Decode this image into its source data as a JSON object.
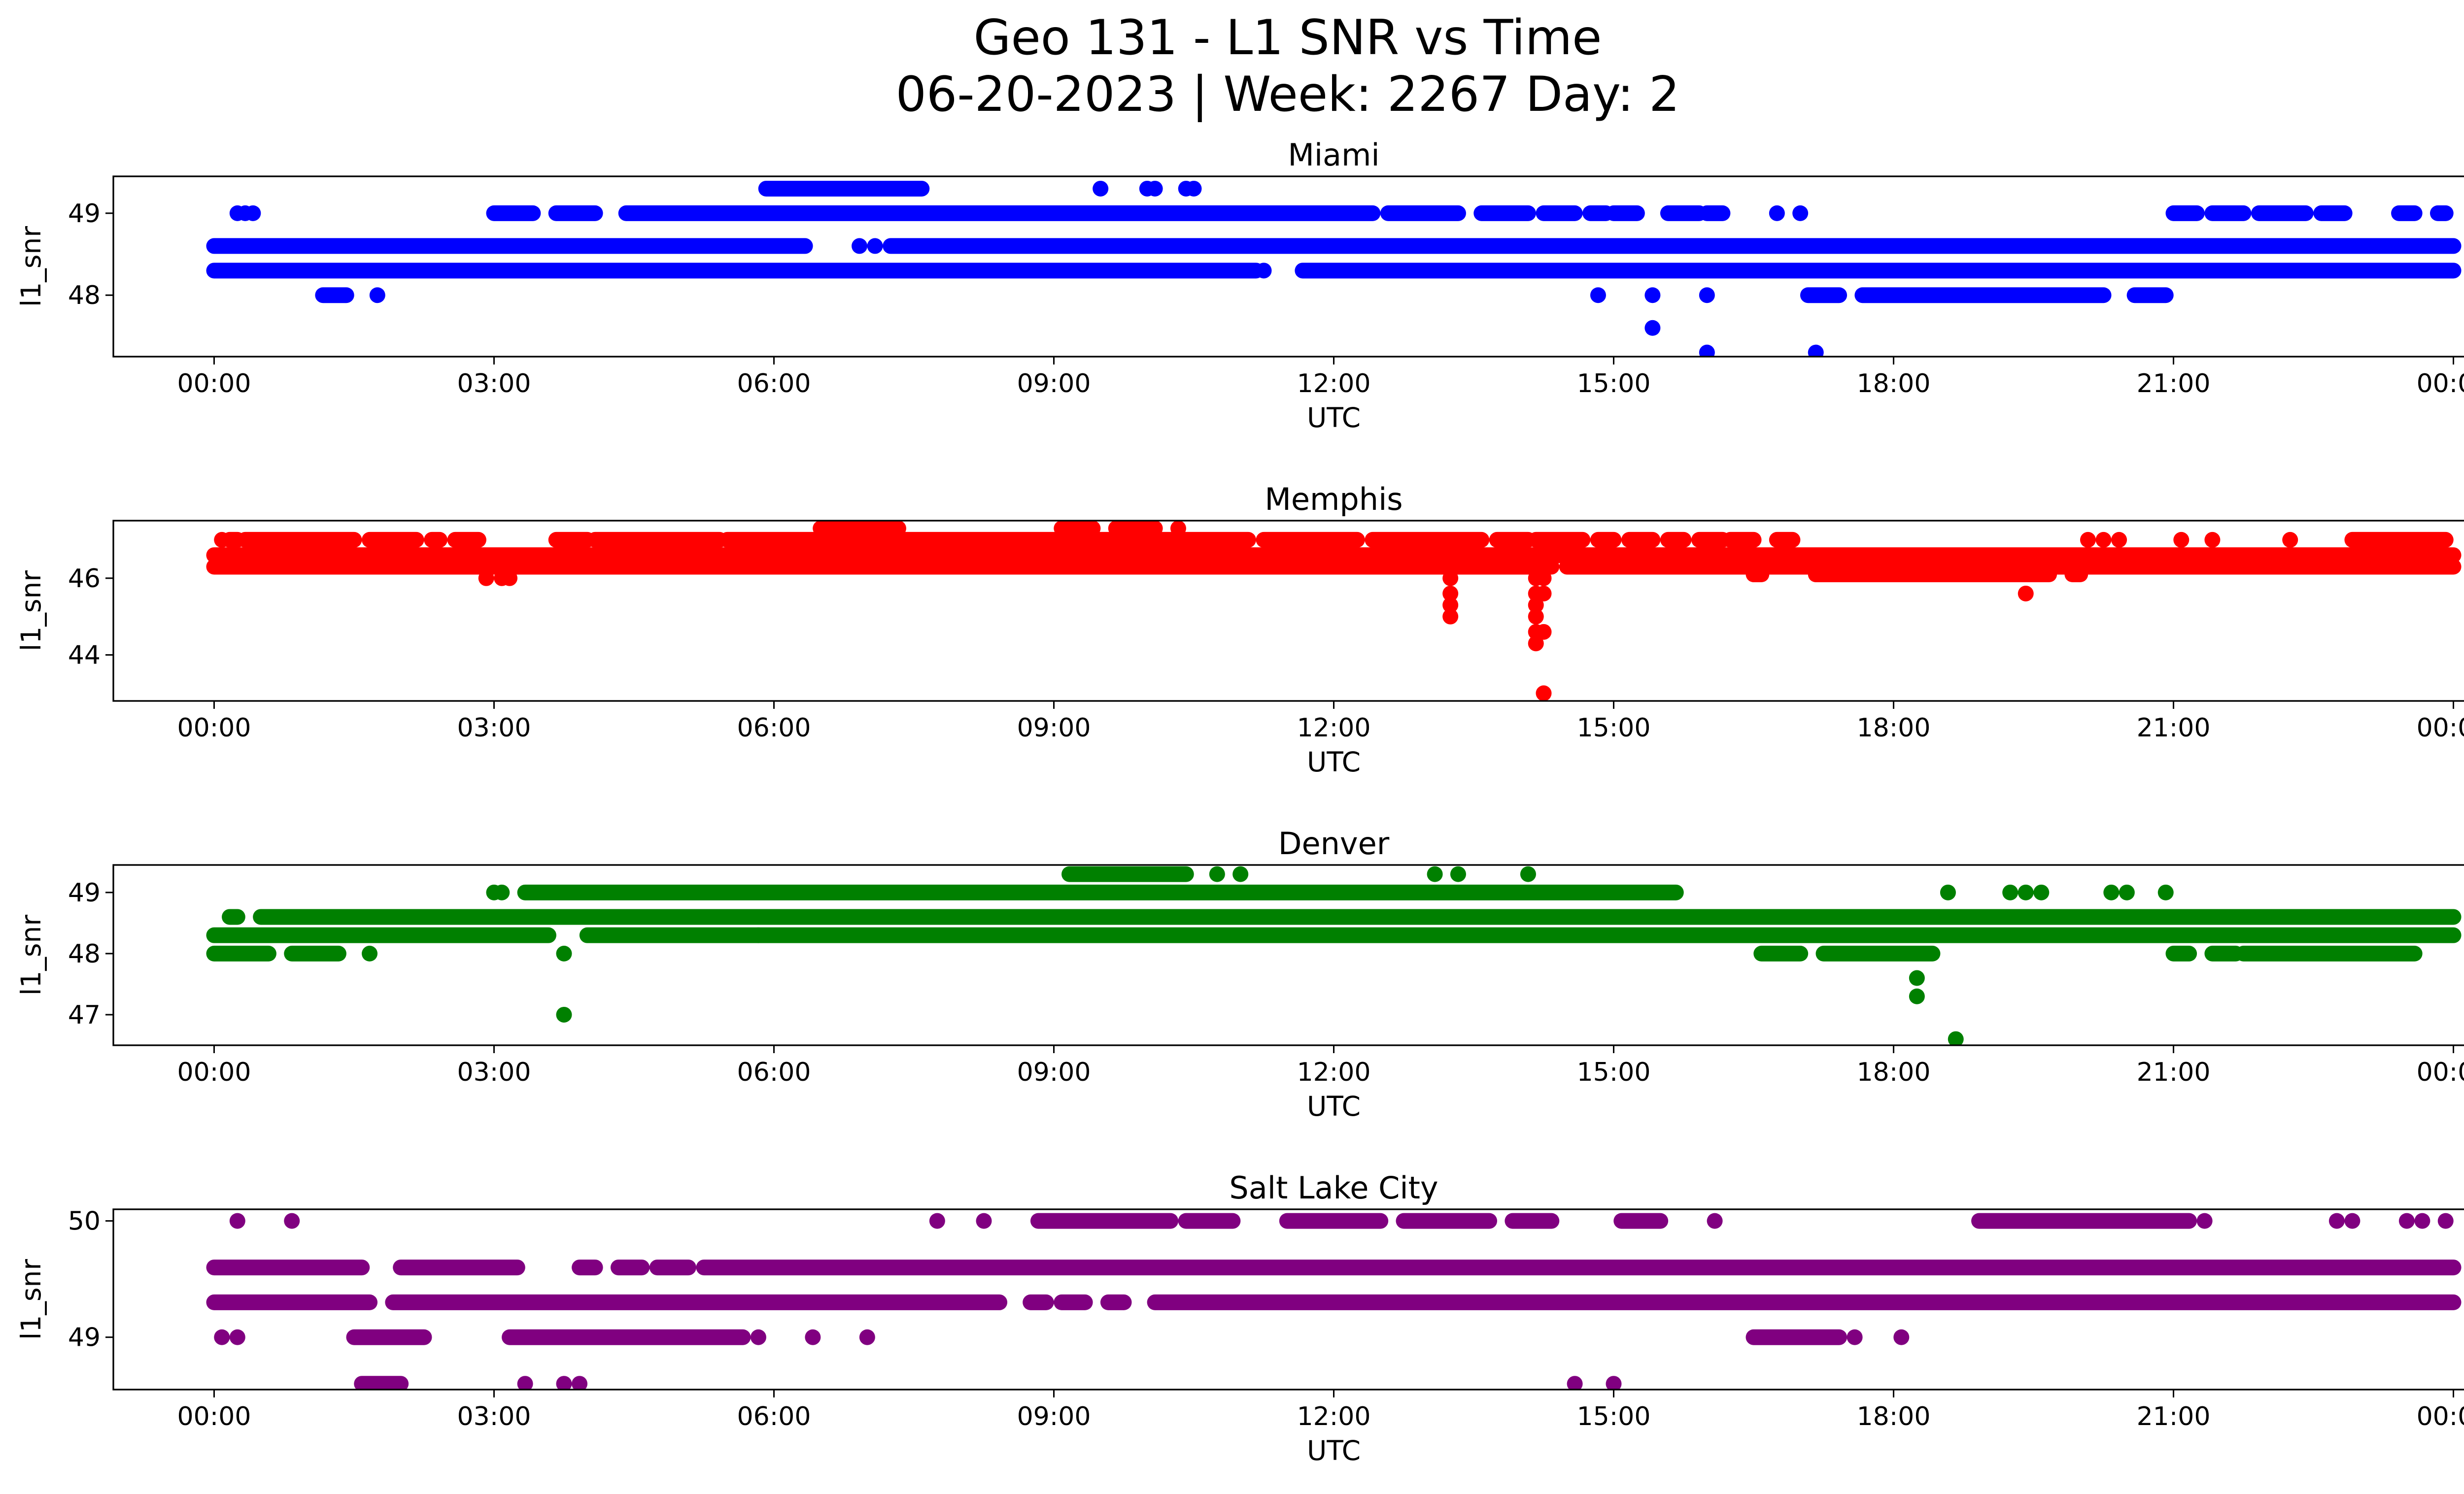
{
  "figure": {
    "title_line1": "Geo 131 - L1 SNR vs Time",
    "title_line2": "06-20-2023 | Week: 2267 Day: 2"
  },
  "chart_data": [
    {
      "type": "scatter",
      "title": "Miami",
      "xlabel": "UTC",
      "ylabel": "l1_snr",
      "color": "#0000ff",
      "xlim": [
        "2023-06-20T00:00",
        "2023-06-21T00:00"
      ],
      "ylim": [
        47.25,
        49.45
      ],
      "yticks": [
        48,
        49
      ],
      "x_tick_labels": [
        "00:00",
        "03:00",
        "06:00",
        "09:00",
        "12:00",
        "15:00",
        "18:00",
        "21:00",
        "00:00"
      ],
      "bands": [
        {
          "y": 48.3,
          "segments": [
            [
              "00:00",
              "11:10"
            ],
            [
              "11:40",
              "24:00"
            ]
          ]
        },
        {
          "y": 48.6,
          "segments": [
            [
              "00:00",
              "06:20"
            ],
            [
              "07:15",
              "24:00"
            ]
          ]
        },
        {
          "y": 49.0,
          "segments": [
            [
              "03:00",
              "03:25"
            ],
            [
              "03:40",
              "04:05"
            ],
            [
              "04:25",
              "12:25"
            ],
            [
              "12:35",
              "13:20"
            ],
            [
              "13:35",
              "14:05"
            ],
            [
              "14:15",
              "14:35"
            ],
            [
              "14:45",
              "14:55"
            ],
            [
              "15:00",
              "15:15"
            ],
            [
              "15:35",
              "15:55"
            ],
            [
              "16:00",
              "16:10"
            ],
            [
              "21:00",
              "21:15"
            ],
            [
              "21:25",
              "21:45"
            ],
            [
              "21:55",
              "22:25"
            ],
            [
              "22:35",
              "22:50"
            ],
            [
              "23:25",
              "23:35"
            ],
            [
              "23:50",
              "23:55"
            ]
          ]
        },
        {
          "y": 48.0,
          "segments": [
            [
              "01:10",
              "01:25"
            ],
            [
              "17:05",
              "17:25"
            ],
            [
              "17:40",
              "20:15"
            ],
            [
              "20:35",
              "20:55"
            ]
          ]
        },
        {
          "y": 49.3,
          "segments": [
            [
              "05:55",
              "07:35"
            ]
          ]
        }
      ],
      "points": [
        {
          "x": "00:15",
          "y": 49.0
        },
        {
          "x": "00:20",
          "y": 49.0
        },
        {
          "x": "00:25",
          "y": 49.0
        },
        {
          "x": "01:45",
          "y": 48.0
        },
        {
          "x": "06:55",
          "y": 48.6
        },
        {
          "x": "07:05",
          "y": 48.6
        },
        {
          "x": "09:30",
          "y": 49.3
        },
        {
          "x": "10:00",
          "y": 49.3
        },
        {
          "x": "10:05",
          "y": 49.3
        },
        {
          "x": "10:25",
          "y": 49.3
        },
        {
          "x": "10:30",
          "y": 49.3
        },
        {
          "x": "11:15",
          "y": 48.3
        },
        {
          "x": "14:50",
          "y": 48.0
        },
        {
          "x": "15:25",
          "y": 48.0
        },
        {
          "x": "15:25",
          "y": 47.6
        },
        {
          "x": "16:00",
          "y": 48.0
        },
        {
          "x": "16:00",
          "y": 47.3
        },
        {
          "x": "16:45",
          "y": 49.0
        },
        {
          "x": "17:00",
          "y": 49.0
        },
        {
          "x": "17:10",
          "y": 47.3
        }
      ]
    },
    {
      "type": "scatter",
      "title": "Memphis",
      "xlabel": "UTC",
      "ylabel": "l1_snr",
      "color": "#ff0000",
      "xlim": [
        "2023-06-20T00:00",
        "2023-06-21T00:00"
      ],
      "ylim": [
        42.8,
        47.5
      ],
      "yticks": [
        44,
        46
      ],
      "x_tick_labels": [
        "00:00",
        "03:00",
        "06:00",
        "09:00",
        "12:00",
        "15:00",
        "18:00",
        "21:00",
        "00:00"
      ],
      "bands": [
        {
          "y": 46.3,
          "segments": [
            [
              "00:00",
              "14:20"
            ],
            [
              "14:30",
              "24:00"
            ]
          ]
        },
        {
          "y": 46.6,
          "segments": [
            [
              "00:00",
              "24:00"
            ]
          ]
        },
        {
          "y": 46.1,
          "segments": [
            [
              "16:30",
              "16:35"
            ],
            [
              "17:10",
              "19:40"
            ],
            [
              "19:55",
              "20:00"
            ]
          ]
        },
        {
          "y": 47.0,
          "segments": [
            [
              "00:10",
              "00:15"
            ],
            [
              "00:20",
              "01:30"
            ],
            [
              "01:40",
              "02:10"
            ],
            [
              "02:20",
              "02:25"
            ],
            [
              "02:35",
              "02:50"
            ],
            [
              "03:40",
              "04:00"
            ],
            [
              "04:05",
              "05:25"
            ],
            [
              "05:30",
              "11:05"
            ],
            [
              "11:15",
              "12:15"
            ],
            [
              "12:25",
              "13:35"
            ],
            [
              "13:45",
              "14:05"
            ],
            [
              "14:10",
              "14:40"
            ],
            [
              "14:50",
              "15:00"
            ],
            [
              "15:10",
              "15:25"
            ],
            [
              "15:35",
              "15:45"
            ],
            [
              "15:55",
              "16:10"
            ],
            [
              "16:15",
              "16:30"
            ],
            [
              "16:45",
              "16:55"
            ],
            [
              "22:55",
              "23:55"
            ]
          ]
        },
        {
          "y": 47.3,
          "segments": [
            [
              "06:30",
              "07:20"
            ],
            [
              "09:05",
              "09:25"
            ],
            [
              "09:40",
              "10:05"
            ]
          ]
        }
      ],
      "points": [
        {
          "x": "00:05",
          "y": 47.0
        },
        {
          "x": "02:55",
          "y": 46.0
        },
        {
          "x": "03:05",
          "y": 46.0
        },
        {
          "x": "03:10",
          "y": 46.0
        },
        {
          "x": "05:40",
          "y": 46.3
        },
        {
          "x": "08:00",
          "y": 46.3
        },
        {
          "x": "10:20",
          "y": 47.3
        },
        {
          "x": "11:35",
          "y": 46.3
        },
        {
          "x": "13:15",
          "y": 46.0
        },
        {
          "x": "13:15",
          "y": 45.6
        },
        {
          "x": "13:15",
          "y": 45.3
        },
        {
          "x": "13:15",
          "y": 45.0
        },
        {
          "x": "14:10",
          "y": 46.0
        },
        {
          "x": "14:10",
          "y": 45.6
        },
        {
          "x": "14:10",
          "y": 45.3
        },
        {
          "x": "14:10",
          "y": 45.0
        },
        {
          "x": "14:10",
          "y": 44.6
        },
        {
          "x": "14:10",
          "y": 44.3
        },
        {
          "x": "14:15",
          "y": 46.0
        },
        {
          "x": "14:15",
          "y": 45.6
        },
        {
          "x": "14:15",
          "y": 44.6
        },
        {
          "x": "14:15",
          "y": 43.0
        },
        {
          "x": "19:25",
          "y": 45.6
        },
        {
          "x": "20:05",
          "y": 47.0
        },
        {
          "x": "20:15",
          "y": 47.0
        },
        {
          "x": "20:25",
          "y": 47.0
        },
        {
          "x": "21:05",
          "y": 47.0
        },
        {
          "x": "21:25",
          "y": 47.0
        },
        {
          "x": "22:15",
          "y": 47.0
        }
      ]
    },
    {
      "type": "scatter",
      "title": "Denver",
      "xlabel": "UTC",
      "ylabel": "l1_snr",
      "color": "#008000",
      "xlim": [
        "2023-06-20T00:00",
        "2023-06-21T00:00"
      ],
      "ylim": [
        46.5,
        49.45
      ],
      "yticks": [
        47,
        48,
        49
      ],
      "x_tick_labels": [
        "00:00",
        "03:00",
        "06:00",
        "09:00",
        "12:00",
        "15:00",
        "18:00",
        "21:00",
        "00:00"
      ],
      "bands": [
        {
          "y": 48.3,
          "segments": [
            [
              "00:00",
              "03:35"
            ],
            [
              "04:00",
              "24:00"
            ]
          ]
        },
        {
          "y": 48.6,
          "segments": [
            [
              "00:10",
              "00:15"
            ],
            [
              "00:30",
              "24:00"
            ]
          ]
        },
        {
          "y": 48.0,
          "segments": [
            [
              "00:00",
              "00:35"
            ],
            [
              "00:50",
              "01:20"
            ],
            [
              "16:35",
              "17:00"
            ],
            [
              "17:15",
              "18:25"
            ],
            [
              "21:00",
              "21:10"
            ],
            [
              "21:25",
              "21:40"
            ],
            [
              "21:45",
              "23:35"
            ]
          ]
        },
        {
          "y": 49.0,
          "segments": [
            [
              "03:20",
              "15:40"
            ]
          ]
        },
        {
          "y": 49.3,
          "segments": [
            [
              "09:10",
              "10:25"
            ]
          ]
        }
      ],
      "points": [
        {
          "x": "01:40",
          "y": 48.0
        },
        {
          "x": "03:00",
          "y": 49.0
        },
        {
          "x": "03:05",
          "y": 49.0
        },
        {
          "x": "03:45",
          "y": 48.0
        },
        {
          "x": "03:45",
          "y": 47.0
        },
        {
          "x": "05:50",
          "y": 48.3
        },
        {
          "x": "10:45",
          "y": 49.3
        },
        {
          "x": "11:00",
          "y": 49.3
        },
        {
          "x": "13:05",
          "y": 49.3
        },
        {
          "x": "13:20",
          "y": 49.3
        },
        {
          "x": "14:05",
          "y": 49.3
        },
        {
          "x": "18:15",
          "y": 47.6
        },
        {
          "x": "18:15",
          "y": 47.3
        },
        {
          "x": "18:35",
          "y": 49.0
        },
        {
          "x": "18:40",
          "y": 46.6
        },
        {
          "x": "19:15",
          "y": 49.0
        },
        {
          "x": "19:25",
          "y": 49.0
        },
        {
          "x": "19:35",
          "y": 49.0
        },
        {
          "x": "20:20",
          "y": 49.0
        },
        {
          "x": "20:30",
          "y": 49.0
        },
        {
          "x": "20:55",
          "y": 49.0
        }
      ]
    },
    {
      "type": "scatter",
      "title": "Salt Lake City",
      "xlabel": "UTC",
      "ylabel": "l1_snr",
      "color": "#800080",
      "xlim": [
        "2023-06-20T00:00",
        "2023-06-21T00:00"
      ],
      "ylim": [
        48.55,
        50.1
      ],
      "yticks": [
        49,
        50
      ],
      "x_tick_labels": [
        "00:00",
        "03:00",
        "06:00",
        "09:00",
        "12:00",
        "15:00",
        "18:00",
        "21:00",
        "00:00"
      ],
      "bands": [
        {
          "y": 49.6,
          "segments": [
            [
              "00:00",
              "01:35"
            ],
            [
              "02:00",
              "03:15"
            ],
            [
              "03:55",
              "04:05"
            ],
            [
              "04:20",
              "04:35"
            ],
            [
              "04:45",
              "05:05"
            ],
            [
              "05:15",
              "24:00"
            ]
          ]
        },
        {
          "y": 49.3,
          "segments": [
            [
              "00:00",
              "01:40"
            ],
            [
              "01:55",
              "08:25"
            ],
            [
              "08:45",
              "08:55"
            ],
            [
              "09:05",
              "09:20"
            ],
            [
              "09:35",
              "09:45"
            ],
            [
              "10:05",
              "24:00"
            ]
          ]
        },
        {
          "y": 49.0,
          "segments": [
            [
              "01:30",
              "02:15"
            ],
            [
              "03:10",
              "05:40"
            ],
            [
              "16:30",
              "17:25"
            ]
          ]
        },
        {
          "y": 50.0,
          "segments": [
            [
              "08:50",
              "10:15"
            ],
            [
              "10:25",
              "10:55"
            ],
            [
              "11:30",
              "12:30"
            ],
            [
              "12:45",
              "13:40"
            ],
            [
              "13:55",
              "14:20"
            ],
            [
              "15:05",
              "15:30"
            ],
            [
              "18:55",
              "21:10"
            ]
          ]
        },
        {
          "y": 48.6,
          "segments": [
            [
              "01:35",
              "02:00"
            ]
          ]
        }
      ],
      "points": [
        {
          "x": "00:15",
          "y": 50.0
        },
        {
          "x": "00:50",
          "y": 50.0
        },
        {
          "x": "00:05",
          "y": 49.0
        },
        {
          "x": "00:15",
          "y": 49.0
        },
        {
          "x": "03:20",
          "y": 48.6
        },
        {
          "x": "03:45",
          "y": 48.6
        },
        {
          "x": "03:55",
          "y": 48.6
        },
        {
          "x": "05:50",
          "y": 49.0
        },
        {
          "x": "06:25",
          "y": 49.0
        },
        {
          "x": "07:00",
          "y": 49.0
        },
        {
          "x": "07:45",
          "y": 50.0
        },
        {
          "x": "08:15",
          "y": 50.0
        },
        {
          "x": "14:35",
          "y": 48.6
        },
        {
          "x": "15:00",
          "y": 48.6
        },
        {
          "x": "16:05",
          "y": 50.0
        },
        {
          "x": "17:35",
          "y": 49.0
        },
        {
          "x": "18:05",
          "y": 49.0
        },
        {
          "x": "21:20",
          "y": 50.0
        },
        {
          "x": "22:45",
          "y": 50.0
        },
        {
          "x": "22:55",
          "y": 50.0
        },
        {
          "x": "23:30",
          "y": 50.0
        },
        {
          "x": "23:40",
          "y": 50.0
        },
        {
          "x": "23:55",
          "y": 50.0
        }
      ]
    }
  ]
}
